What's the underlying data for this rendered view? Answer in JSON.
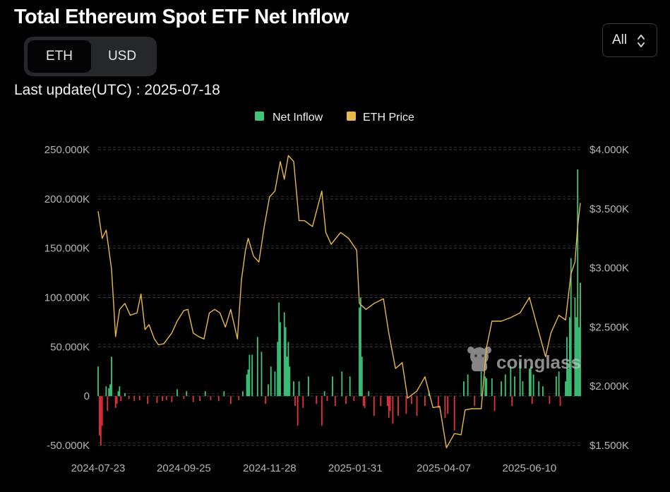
{
  "header": {
    "title": "Total Ethereum Spot ETF Net Inflow",
    "last_update_label": "Last update(UTC) : 2025-07-18"
  },
  "unit_toggle": {
    "options": [
      "ETH",
      "USD"
    ],
    "selected": "ETH"
  },
  "range_select": {
    "value": "All",
    "icon": "chevron-up-down-icon"
  },
  "watermark": {
    "text": "coinglass",
    "icon": "coinglass-logo-icon"
  },
  "colors": {
    "inflow_positive": "#3ec77a",
    "inflow_negative": "#e2333c",
    "price_line": "#e9b949",
    "background": "#000000"
  },
  "chart_data": {
    "type": "bar",
    "title": "Total Ethereum Spot ETF Net Inflow",
    "legend": {
      "position": "top-center",
      "entries": [
        "Net Inflow",
        "ETH Price"
      ]
    },
    "x_tick_labels": [
      "2024-07-23",
      "2024-09-25",
      "2024-11-28",
      "2025-01-31",
      "2025-04-07",
      "2025-06-10"
    ],
    "x_range": [
      "2024-07-23",
      "2025-07-18"
    ],
    "y_left": {
      "ticks": [
        "250.000K",
        "200.000K",
        "150.000K",
        "100.000K",
        "50.000K",
        "0",
        "-50.000K"
      ],
      "range": [
        -50000,
        250000
      ]
    },
    "y_right": {
      "ticks": [
        "$4.000K",
        "$3.500K",
        "$3.000K",
        "$2.500K",
        "$2.000K",
        "$1.500K"
      ],
      "range": [
        1500,
        4000
      ]
    },
    "grid": "horizontal dashed",
    "series": [
      {
        "name": "Net Inflow",
        "kind": "bar",
        "dates": [
          "2024-07-23",
          "2024-07-24",
          "2024-07-25",
          "2024-07-26",
          "2024-07-29",
          "2024-07-30",
          "2024-07-31",
          "2024-08-01",
          "2024-08-02",
          "2024-08-05",
          "2024-08-06",
          "2024-08-07",
          "2024-08-08",
          "2024-08-09",
          "2024-08-12",
          "2024-08-15",
          "2024-08-19",
          "2024-08-23",
          "2024-08-29",
          "2024-09-05",
          "2024-09-09",
          "2024-09-12",
          "2024-09-16",
          "2024-09-20",
          "2024-09-25",
          "2024-09-27",
          "2024-10-02",
          "2024-10-07",
          "2024-10-11",
          "2024-10-15",
          "2024-10-21",
          "2024-10-25",
          "2024-10-30",
          "2024-11-05",
          "2024-11-08",
          "2024-11-11",
          "2024-11-12",
          "2024-11-13",
          "2024-11-15",
          "2024-11-19",
          "2024-11-22",
          "2024-11-25",
          "2024-11-27",
          "2024-11-29",
          "2024-12-02",
          "2024-12-04",
          "2024-12-05",
          "2024-12-06",
          "2024-12-09",
          "2024-12-10",
          "2024-12-11",
          "2024-12-12",
          "2024-12-13",
          "2024-12-16",
          "2024-12-17",
          "2024-12-19",
          "2024-12-20",
          "2024-12-23",
          "2024-12-27",
          "2025-01-02",
          "2025-01-06",
          "2025-01-08",
          "2025-01-10",
          "2025-01-14",
          "2025-01-16",
          "2025-01-21",
          "2025-01-24",
          "2025-01-27",
          "2025-01-30",
          "2025-02-03",
          "2025-02-04",
          "2025-02-05",
          "2025-02-06",
          "2025-02-07",
          "2025-02-10",
          "2025-02-14",
          "2025-02-19",
          "2025-02-24",
          "2025-02-25",
          "2025-02-26",
          "2025-02-28",
          "2025-03-04",
          "2025-03-10",
          "2025-03-14",
          "2025-03-18",
          "2025-03-24",
          "2025-03-27",
          "2025-04-03",
          "2025-04-08",
          "2025-04-10",
          "2025-04-15",
          "2025-04-22",
          "2025-04-25",
          "2025-04-30",
          "2025-05-05",
          "2025-05-08",
          "2025-05-09",
          "2025-05-13",
          "2025-05-15",
          "2025-05-20",
          "2025-05-23",
          "2025-05-27",
          "2025-05-28",
          "2025-05-30",
          "2025-06-03",
          "2025-06-05",
          "2025-06-10",
          "2025-06-11",
          "2025-06-12",
          "2025-06-13",
          "2025-06-17",
          "2025-06-20",
          "2025-06-25",
          "2025-06-30",
          "2025-07-02",
          "2025-07-03",
          "2025-07-07",
          "2025-07-08",
          "2025-07-09",
          "2025-07-10",
          "2025-07-11",
          "2025-07-14",
          "2025-07-15",
          "2025-07-16",
          "2025-07-17",
          "2025-07-18"
        ],
        "values": [
          30000,
          -40000,
          -50000,
          -30000,
          10000,
          -15000,
          8000,
          12000,
          40000,
          -12000,
          -8000,
          5000,
          10000,
          -5000,
          3000,
          -3000,
          -5000,
          -4000,
          -8000,
          -7000,
          -5000,
          -4000,
          -6000,
          7000,
          -3000,
          5000,
          -6000,
          -5000,
          5000,
          -4000,
          -5000,
          5000,
          -8000,
          -4000,
          5000,
          22000,
          27000,
          42000,
          42000,
          60000,
          45000,
          -8000,
          12000,
          30000,
          25000,
          55000,
          95000,
          75000,
          85000,
          70000,
          40000,
          55000,
          30000,
          15000,
          -10000,
          -30000,
          15000,
          -12000,
          20000,
          -8000,
          -30000,
          5000,
          -5000,
          20000,
          -10000,
          25000,
          -8000,
          20000,
          -5000,
          90000,
          100000,
          40000,
          -10000,
          -12000,
          5000,
          -20000,
          -10000,
          -10000,
          -22000,
          -15000,
          -28000,
          -20000,
          -18000,
          -8000,
          -20000,
          -10000,
          5000,
          -12000,
          -22000,
          -18000,
          -35000,
          15000,
          22000,
          -10000,
          25000,
          20000,
          18000,
          18000,
          -15000,
          15000,
          22000,
          30000,
          -10000,
          20000,
          35000,
          15000,
          28000,
          30000,
          -8000,
          22000,
          15000,
          10000,
          -8000,
          20000,
          25000,
          -10000,
          15000,
          60000,
          28000,
          80000,
          140000,
          100000,
          80000,
          230000,
          70000,
          115000
        ]
      },
      {
        "name": "ETH Price",
        "kind": "line",
        "dates": [
          "2024-07-23",
          "2024-07-26",
          "2024-07-29",
          "2024-08-02",
          "2024-08-05",
          "2024-08-08",
          "2024-08-12",
          "2024-08-16",
          "2024-08-21",
          "2024-08-24",
          "2024-08-27",
          "2024-08-30",
          "2024-09-03",
          "2024-09-06",
          "2024-09-10",
          "2024-09-16",
          "2024-09-20",
          "2024-09-25",
          "2024-09-28",
          "2024-10-02",
          "2024-10-06",
          "2024-10-10",
          "2024-10-14",
          "2024-10-18",
          "2024-10-22",
          "2024-10-26",
          "2024-10-30",
          "2024-11-04",
          "2024-11-07",
          "2024-11-10",
          "2024-11-12",
          "2024-11-16",
          "2024-11-20",
          "2024-11-24",
          "2024-11-28",
          "2024-12-02",
          "2024-12-06",
          "2024-12-09",
          "2024-12-12",
          "2024-12-16",
          "2024-12-20",
          "2024-12-24",
          "2024-12-30",
          "2025-01-06",
          "2025-01-09",
          "2025-01-13",
          "2025-01-20",
          "2025-01-26",
          "2025-02-01",
          "2025-02-03",
          "2025-02-08",
          "2025-02-14",
          "2025-02-21",
          "2025-02-25",
          "2025-03-02",
          "2025-03-07",
          "2025-03-11",
          "2025-03-18",
          "2025-03-24",
          "2025-03-30",
          "2025-04-04",
          "2025-04-09",
          "2025-04-15",
          "2025-04-20",
          "2025-04-23",
          "2025-04-28",
          "2025-05-05",
          "2025-05-09",
          "2025-05-13",
          "2025-05-20",
          "2025-05-27",
          "2025-06-03",
          "2025-06-10",
          "2025-06-15",
          "2025-06-22",
          "2025-06-26",
          "2025-07-02",
          "2025-07-07",
          "2025-07-11",
          "2025-07-14",
          "2025-07-16",
          "2025-07-18"
        ],
        "values": [
          3480,
          3250,
          3320,
          2990,
          2420,
          2650,
          2700,
          2600,
          2620,
          2780,
          2480,
          2520,
          2400,
          2350,
          2360,
          2450,
          2550,
          2640,
          2650,
          2450,
          2420,
          2400,
          2620,
          2650,
          2620,
          2500,
          2650,
          2400,
          2900,
          3150,
          3250,
          3100,
          3050,
          3350,
          3600,
          3650,
          3900,
          3750,
          3950,
          3900,
          3400,
          3400,
          3350,
          3650,
          3300,
          3200,
          3300,
          3250,
          3150,
          2700,
          2650,
          2700,
          2740,
          2450,
          2150,
          2200,
          1900,
          1960,
          2080,
          1820,
          1830,
          1480,
          1600,
          1590,
          1800,
          1810,
          1810,
          2330,
          2550,
          2550,
          2580,
          2620,
          2750,
          2540,
          2250,
          2450,
          2600,
          2560,
          2950,
          3050,
          3350,
          3550
        ]
      }
    ]
  }
}
